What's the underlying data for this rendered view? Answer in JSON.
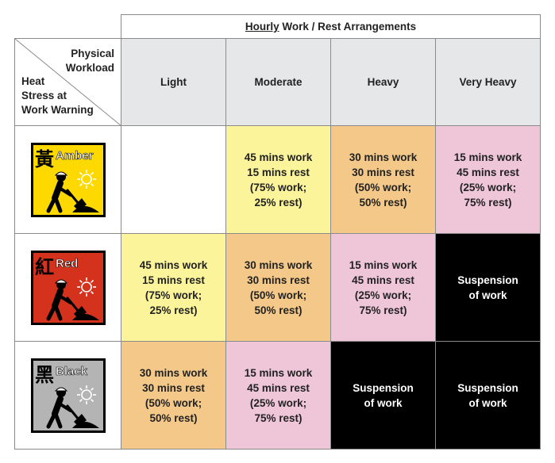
{
  "title": {
    "underlined": "Hourly",
    "rest": " Work / Rest Arrangements"
  },
  "corner": {
    "top_lines": [
      "Physical",
      "Workload"
    ],
    "bottom_lines": [
      "Heat",
      "Stress at",
      "Work Warning"
    ]
  },
  "columns": [
    "Light",
    "Moderate",
    "Heavy",
    "Very Heavy"
  ],
  "colors": {
    "yellow": "#fbf49a",
    "orange": "#f4c888",
    "pink": "#eec6d7",
    "black": "#000000",
    "header_gray": "#e6e7e8"
  },
  "rows": [
    {
      "warning": {
        "chinese": "黃",
        "label": "Amber",
        "color": "#fdd900",
        "icon": "worker-shovel-sun-icon"
      },
      "cells": [
        {
          "color": "white",
          "lines": []
        },
        {
          "color": "yellow",
          "lines": [
            "45 mins work",
            "15 mins rest",
            "(75% work;",
            "25% rest)"
          ]
        },
        {
          "color": "orange",
          "lines": [
            "30 mins work",
            "30 mins rest",
            "(50% work;",
            "50% rest)"
          ]
        },
        {
          "color": "pink",
          "lines": [
            "15 mins work",
            "45 mins rest",
            "(25% work;",
            "75% rest)"
          ]
        }
      ]
    },
    {
      "warning": {
        "chinese": "紅",
        "label": "Red",
        "color": "#d4321c",
        "icon": "worker-shovel-sun-icon"
      },
      "cells": [
        {
          "color": "yellow",
          "lines": [
            "45 mins work",
            "15 mins rest",
            "(75% work;",
            "25% rest)"
          ]
        },
        {
          "color": "orange",
          "lines": [
            "30 mins work",
            "30 mins rest",
            "(50% work;",
            "50% rest)"
          ]
        },
        {
          "color": "pink",
          "lines": [
            "15 mins work",
            "45 mins rest",
            "(25% work;",
            "75% rest)"
          ]
        },
        {
          "color": "black",
          "lines": [
            "Suspension",
            "of work"
          ]
        }
      ]
    },
    {
      "warning": {
        "chinese": "黑",
        "label": "Black",
        "color": "#b4b4b4",
        "icon": "worker-shovel-sun-icon"
      },
      "cells": [
        {
          "color": "orange",
          "lines": [
            "30 mins work",
            "30 mins rest",
            "(50% work;",
            "50% rest)"
          ]
        },
        {
          "color": "pink",
          "lines": [
            "15 mins work",
            "45 mins rest",
            "(25% work;",
            "75% rest)"
          ]
        },
        {
          "color": "black",
          "lines": [
            "Suspension",
            "of work"
          ]
        },
        {
          "color": "black",
          "lines": [
            "Suspension",
            "of work"
          ]
        }
      ]
    }
  ]
}
